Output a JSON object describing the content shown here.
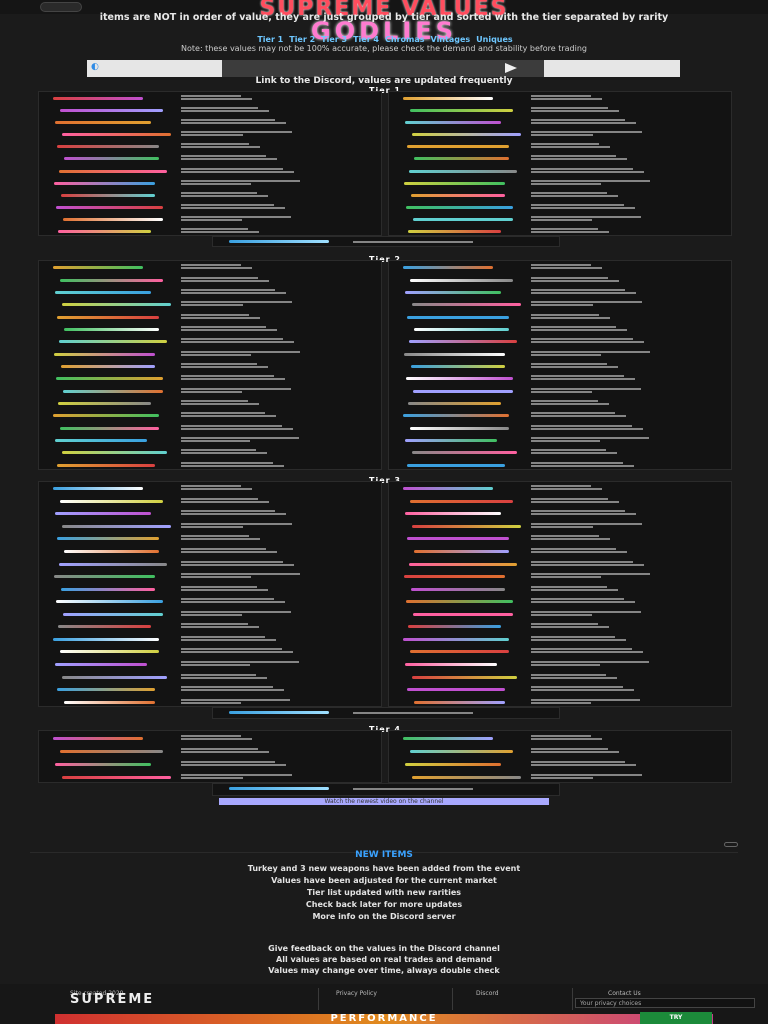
{
  "header": {
    "title": "SUPREME VALUES",
    "subtitle": "items are NOT in order of value, they are just grouped by tier and sorted with the tier separated by rarity",
    "brand": "GODLIES",
    "tabs": [
      "Tier 1",
      "Tier 2",
      "Tier 3",
      "Tier 4",
      "Chromas",
      "Vintages",
      "Uniques"
    ],
    "info": "Note: these values may not be 100% accurate, please check the demand and stability before trading"
  },
  "banner": {
    "play_icon": "play-icon"
  },
  "tier_link_text": "Link to the Discord, values are updated frequently",
  "tiers": [
    {
      "label": "Tier 1"
    },
    {
      "label": "Tier 2"
    },
    {
      "label": "Tier 3"
    },
    {
      "label": "Tier 4"
    }
  ],
  "link_bar": "Watch the newest video on the channel",
  "new_items": {
    "heading": "NEW ITEMS",
    "lines": [
      "Turkey and 3 new weapons have been added from the event",
      "Values have been adjusted for the current market",
      "Tier list updated with new rarities",
      "Check back later for more updates",
      "More info on the Discord server"
    ],
    "more_lines": [
      "Give feedback on the values in the Discord channel",
      "All values are based on real trades and demand",
      "Values may change over time, always double check"
    ]
  },
  "footer": {
    "logo": "SUPREME",
    "subtitle": "Site created 2020",
    "cols": [
      "Privacy Policy",
      "Discord",
      "Contact Us"
    ],
    "popup": "Your privacy choices",
    "ad_text": "PERFORMANCE",
    "ad_badge": "TRY"
  },
  "colors": {
    "title": "#ff4d5e",
    "brand": "#ff7bd0",
    "accent": "#3aa2ff",
    "link_bar": "#a9a9ff"
  }
}
